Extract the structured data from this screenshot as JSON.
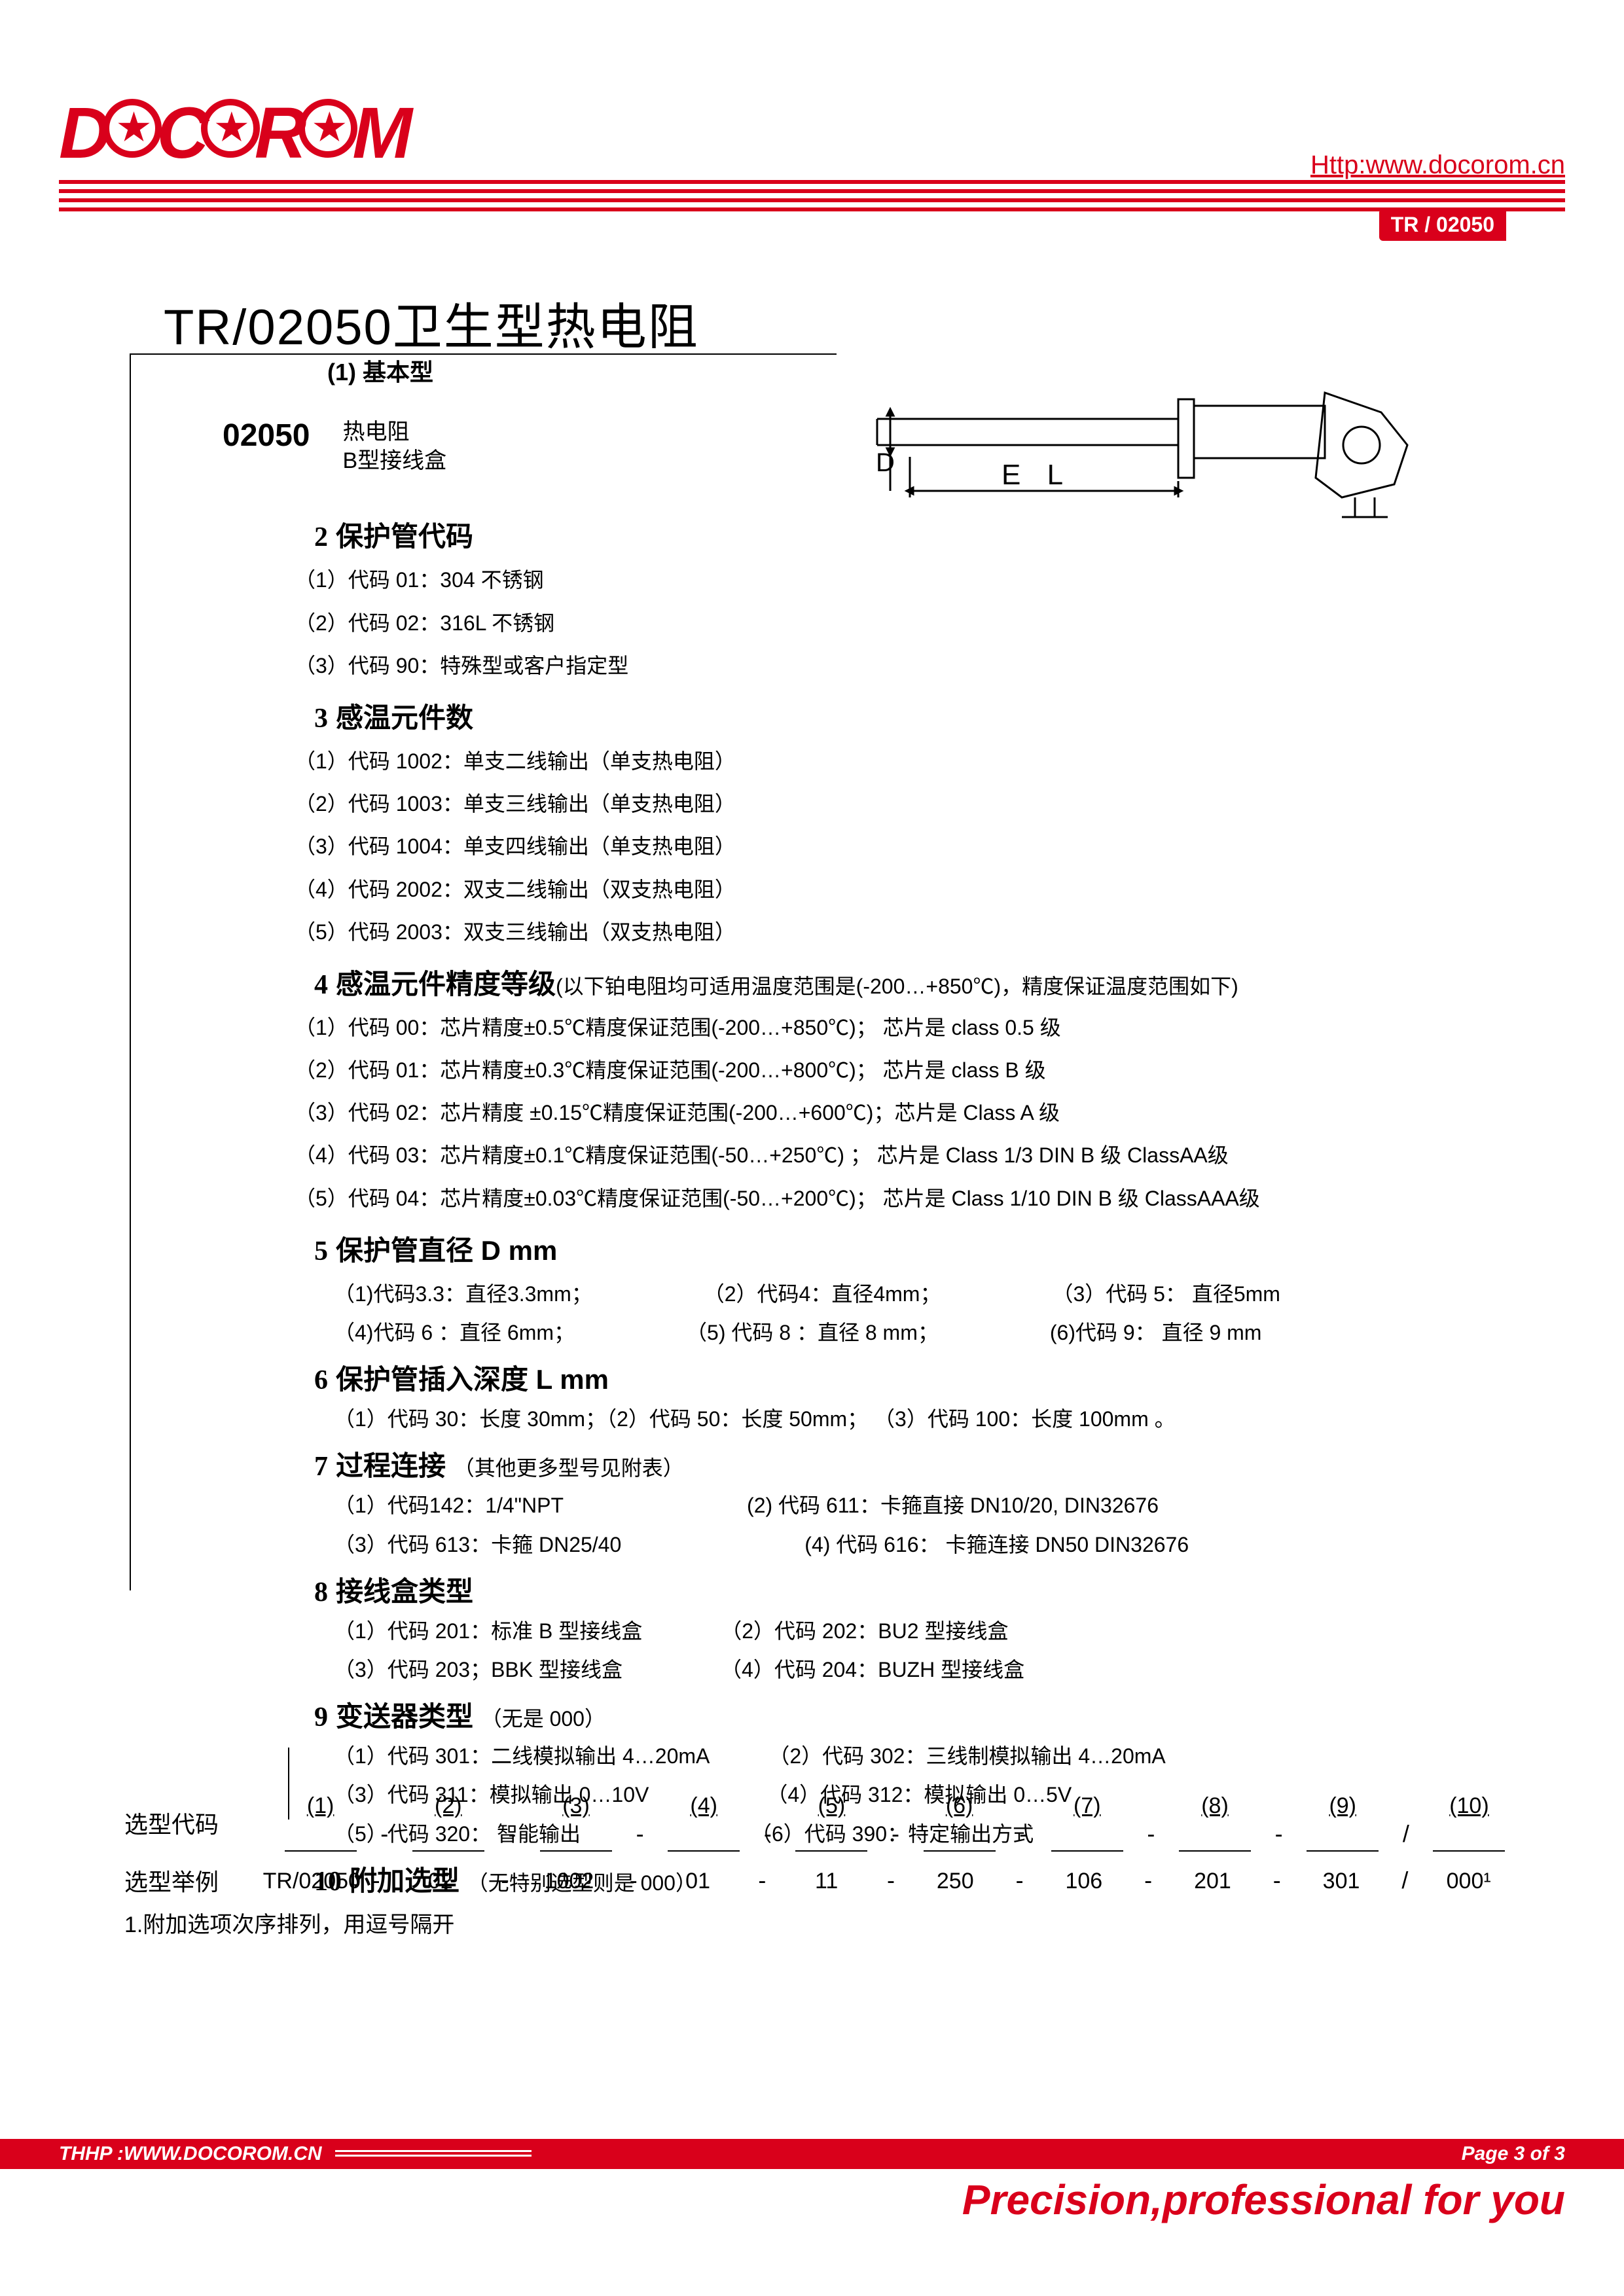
{
  "brand": "DOCOROM",
  "url": "Http:www.docorom.cn",
  "pill": "TR / 02050",
  "title": "TR/02050卫生型热电阻",
  "basic_label": "(1)  基本型",
  "code": "02050",
  "code_desc1": "热电阻",
  "code_desc2": "B型接线盒",
  "diagram_labels": {
    "D": "D",
    "EL": "E L"
  },
  "s2": {
    "title": "保护管代码",
    "items": [
      "（1）代码 01：304 不锈钢",
      "（2）代码 02：316L 不锈钢",
      "（3）代码 90：特殊型或客户指定型"
    ]
  },
  "s3": {
    "title": "感温元件数",
    "items": [
      "（1）代码 1002：单支二线输出（单支热电阻）",
      "（2）代码 1003：单支三线输出（单支热电阻）",
      "（3）代码 1004：单支四线输出（单支热电阻）",
      "（4）代码 2002：双支二线输出（双支热电阻）",
      "（5）代码 2003：双支三线输出（双支热电阻）"
    ]
  },
  "s4": {
    "title": "感温元件精度等级",
    "note": "(以下铂电阻均可适用温度范围是(-200…+850℃)，精度保证温度范围如下)",
    "items": [
      "（1）代码 00：芯片精度±0.5℃精度保证范围(-200…+850℃)；  芯片是 class 0.5 级",
      "（2）代码 01：芯片精度±0.3℃精度保证范围(-200…+800℃)；  芯片是 class B  级",
      "（3）代码 02：芯片精度 ±0.15℃精度保证范围(-200…+600℃)；芯片是 Class A  级",
      "（4）代码 03：芯片精度±0.1℃精度保证范围(-50…+250℃) ；  芯片是  Class 1/3 DIN B 级  ClassAA级",
      "（5）代码 04：芯片精度±0.03℃精度保证范围(-50…+200℃)；  芯片是 Class 1/10 DIN B 级  ClassAAA级"
    ]
  },
  "s5": {
    "title": "保护管直径 D mm",
    "row1": [
      "（1)代码3.3：直径3.3mm；",
      "（2）代码4：直径4mm；",
      "（3）代码 5： 直径5mm"
    ],
    "row2": [
      "（4)代码 6 ：直径 6mm；",
      "（5) 代码 8 ：直径 8 mm；",
      "(6)代码  9： 直径 9 mm"
    ]
  },
  "s6": {
    "title": "保护管插入深度 L mm",
    "row": "（1）代码 30：长度 30mm；（2）代码 50：长度 50mm；  （3）代码 100：长度 100mm 。"
  },
  "s7": {
    "title": "过程连接",
    "note": "（其他更多型号见附表）",
    "row1": [
      "（1）代码142：1/4\"NPT",
      "(2) 代码 611：卡箍直接 DN10/20, DIN32676"
    ],
    "row2": [
      "（3）代码 613：卡箍 DN25/40",
      "(4) 代码 616： 卡箍连接 DN50 DIN32676"
    ]
  },
  "s8": {
    "title": "接线盒类型",
    "row1": [
      "（1）代码 201：标准 B 型接线盒",
      "（2）代码 202：BU2 型接线盒"
    ],
    "row2": [
      "（3）代码 203；BBK 型接线盒",
      "（4）代码 204：BUZH 型接线盒"
    ]
  },
  "s9": {
    "title": "变送器类型",
    "note": "（无是 000）",
    "row1": [
      "（1）代码 301：二线模拟输出 4…20mA",
      "（2）代码 302：三线制模拟输出 4…20mA"
    ],
    "row2": [
      "（3）代码 311：模拟输出 0…10V",
      "（4）代码 312：模拟输出 0…5V"
    ],
    "row3": [
      "（5）代码 320：  智能输出",
      "（6）代码 390：特定输出方式"
    ]
  },
  "s10": {
    "title": "附加选型",
    "note": "（无特别选型则是 000）"
  },
  "selection": {
    "cols": [
      "(1)",
      "(2)",
      "(3)",
      "(4)",
      "(5)",
      "(6)",
      "(7)",
      "(8)",
      "(9)",
      "(10)"
    ],
    "label_code": "选型代码",
    "label_ex": "选型举例",
    "ex": [
      "TR/02050",
      "-",
      "02",
      "-",
      "1002",
      "-",
      "01",
      "-",
      "11",
      "-",
      "250",
      "-",
      "106",
      "-",
      "201",
      "-",
      "301",
      "/",
      "000¹"
    ],
    "note": "1.附加选项次序排列，用逗号隔开"
  },
  "footer": {
    "left": "THHP :WWW.DOCOROM.CN",
    "page": "Page 3 of  3",
    "slogan": "Precision,professional for you"
  }
}
